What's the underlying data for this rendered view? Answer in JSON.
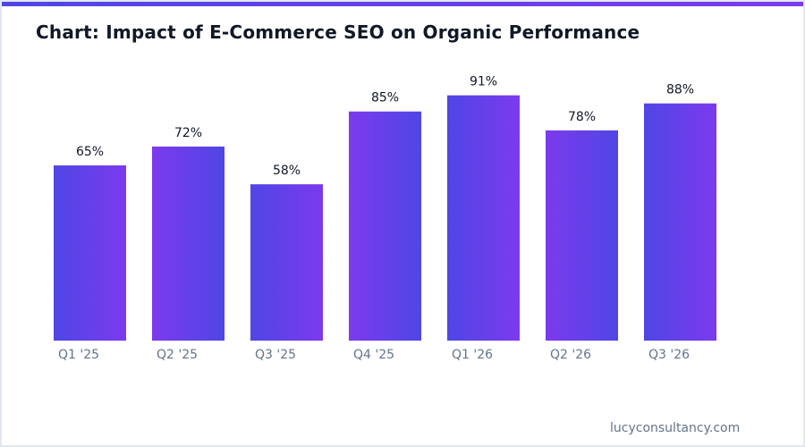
{
  "title": "Chart: Impact of E-Commerce SEO on Organic Performance",
  "footer": "lucyconsultancy.com",
  "colors": {
    "accent_blue": "#4f46e5",
    "accent_purple": "#7c3aed",
    "title": "#111827",
    "tick_label": "#64748b"
  },
  "chart_data": {
    "type": "bar",
    "title": "Chart: Impact of E-Commerce SEO on Organic Performance",
    "categories": [
      "Q1 '25",
      "Q2 '25",
      "Q3 '25",
      "Q4 '25",
      "Q1 '26",
      "Q2 '26",
      "Q3 '26"
    ],
    "values": [
      65,
      72,
      58,
      85,
      91,
      78,
      88
    ],
    "data_labels": [
      "65%",
      "72%",
      "58%",
      "85%",
      "91%",
      "78%",
      "88%"
    ],
    "xlabel": "",
    "ylabel": "",
    "ylim": [
      0,
      100
    ],
    "grid": false,
    "legend": "none"
  }
}
